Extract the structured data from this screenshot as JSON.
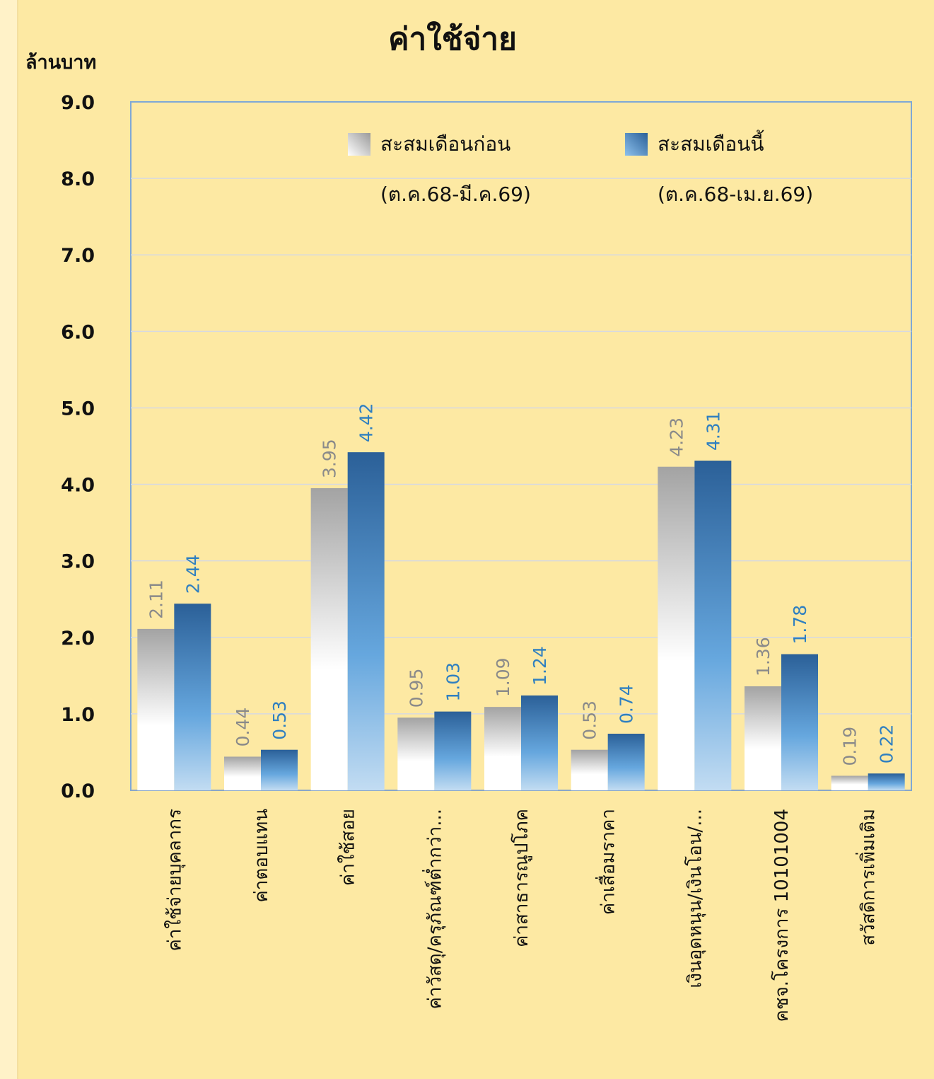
{
  "chart_data": {
    "type": "bar",
    "title": "ค่าใช้จ่าย",
    "ylabel": "ล้านบาท",
    "ylim": [
      0,
      9
    ],
    "yticks": [
      "0.0",
      "1.0",
      "2.0",
      "3.0",
      "4.0",
      "5.0",
      "6.0",
      "7.0",
      "8.0",
      "9.0"
    ],
    "grid": true,
    "legend_position": "top",
    "categories": [
      "ค่าใช้จ่ายบุคลากร",
      "ค่าตอบแทน",
      "ค่าใช้สอย",
      "ค่าวัสดุ/ครุภัณฑ์ต่ำกว่า...",
      "ค่าสาธารณูปโภค",
      "ค่าเสื่อมราคา",
      "เงินอุดหนุน/เงินโอน/...",
      "คชจ.โครงการ 10101004",
      "สวัสดิการเพิ่มเติม"
    ],
    "series": [
      {
        "name": "สะสมเดือนก่อน",
        "period": "(ต.ค.68-มี.ค.69)",
        "values": [
          2.11,
          0.44,
          3.95,
          0.95,
          1.09,
          0.53,
          4.23,
          1.36,
          0.19
        ],
        "labels": [
          "2.11",
          "0.44",
          "3.95",
          "0.95",
          "1.09",
          "0.53",
          "4.23",
          "1.36",
          "0.19"
        ],
        "color": "#a6a6a6"
      },
      {
        "name": "สะสมเดือนนี้",
        "period": "(ต.ค.68-เม.ย.69)",
        "values": [
          2.44,
          0.53,
          4.42,
          1.03,
          1.24,
          0.74,
          4.31,
          1.78,
          0.22
        ],
        "labels": [
          "2.44",
          "0.53",
          "4.42",
          "1.03",
          "1.24",
          "0.74",
          "4.31",
          "1.78",
          "0.22"
        ],
        "color": "#2e6aa6"
      }
    ]
  }
}
